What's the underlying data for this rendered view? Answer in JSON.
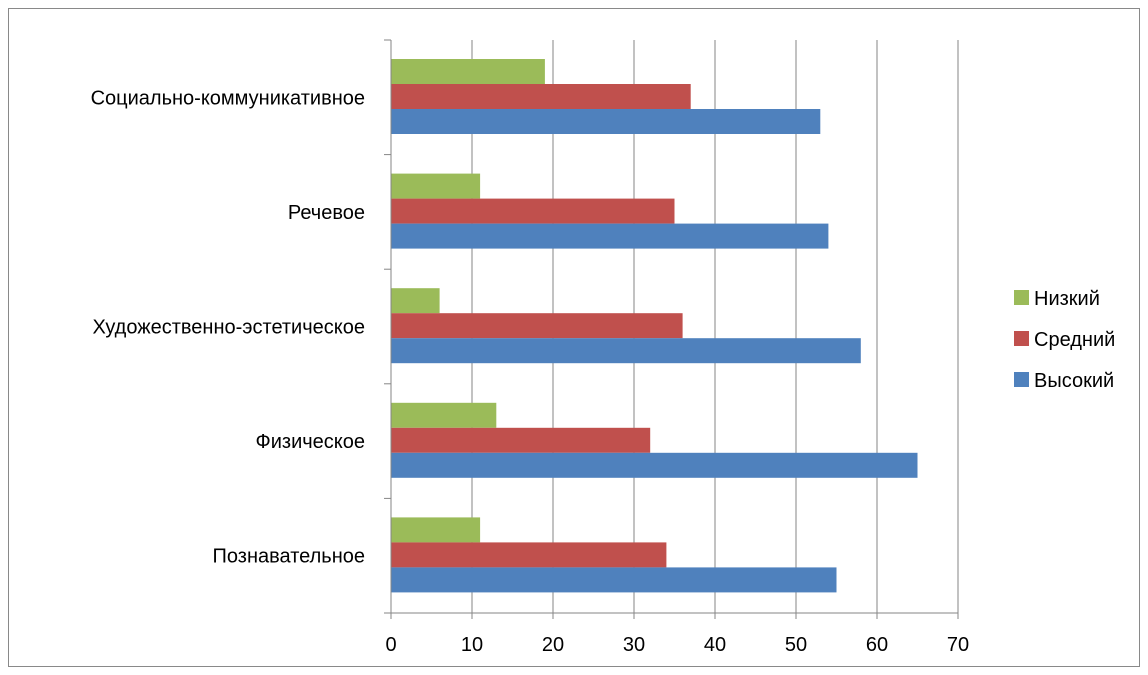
{
  "chart_data": {
    "type": "bar",
    "orientation": "horizontal",
    "categories": [
      "Социально-коммуникативное",
      "Речевое",
      "Художественно-эстетическое",
      "Физическое",
      "Познавательное"
    ],
    "series": [
      {
        "name": "Низкий",
        "color": "#9BBB59",
        "values": [
          19,
          11,
          6,
          13,
          11
        ]
      },
      {
        "name": "Средний",
        "color": "#C0504D",
        "values": [
          37,
          35,
          36,
          32,
          34
        ]
      },
      {
        "name": "Высокий",
        "color": "#4F81BD",
        "values": [
          53,
          54,
          58,
          65,
          55
        ]
      }
    ],
    "xlim": [
      0,
      70
    ],
    "x_ticks": [
      "0",
      "10",
      "20",
      "30",
      "40",
      "50",
      "60",
      "70"
    ],
    "grid": true,
    "legend_position": "right"
  }
}
